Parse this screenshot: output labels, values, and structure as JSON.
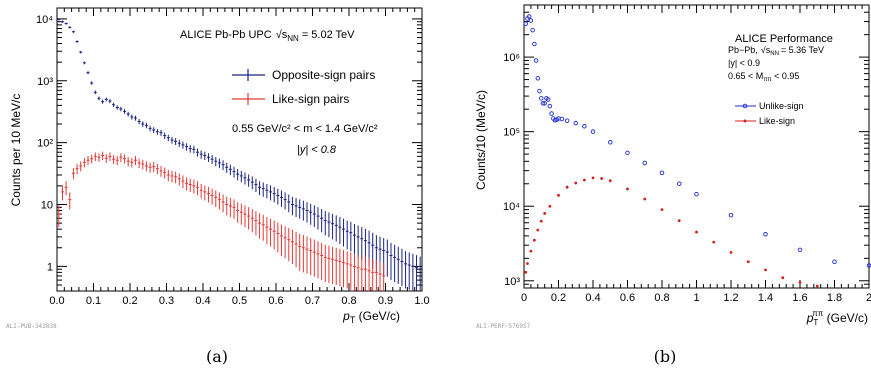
{
  "chart_data": [
    {
      "type": "scatter",
      "panel_label": "(a)",
      "watermark": "ALI-PUB-343838",
      "xlabel_prefix": "p",
      "xlabel_sub": "T",
      "xlabel_suffix": " (GeV/c)",
      "ylabel": "Counts per 10 MeV/c",
      "header": "ALICE Pb-Pb UPC",
      "header_sqrt": "√s",
      "header_sub": "NN",
      "header_energy": "= 5.02 TeV",
      "annotation_mass": "0.55 GeV/c² < m < 1.4 GeV/c²",
      "annotation_rapidity": "|y| < 0.8",
      "xlim": [
        0.0,
        1.0
      ],
      "ylim": [
        0.4,
        15000
      ],
      "yscale": "log",
      "xticks": [
        "0.0",
        "0.1",
        "0.2",
        "0.3",
        "0.4",
        "0.5",
        "0.6",
        "0.7",
        "0.8",
        "0.9",
        "1.0"
      ],
      "yticks": [
        "1",
        "10",
        "10²",
        "10³",
        "10⁴"
      ],
      "legend_position": "top-right",
      "series": [
        {
          "name": "Opposite-sign pairs",
          "color": "#1a237e",
          "x": [
            0.005,
            0.015,
            0.025,
            0.035,
            0.045,
            0.055,
            0.065,
            0.075,
            0.085,
            0.095,
            0.105,
            0.115,
            0.125,
            0.135,
            0.145,
            0.155,
            0.165,
            0.175,
            0.185,
            0.195,
            0.205,
            0.215,
            0.225,
            0.235,
            0.245,
            0.255,
            0.265,
            0.275,
            0.285,
            0.295,
            0.305,
            0.315,
            0.325,
            0.335,
            0.345,
            0.355,
            0.365,
            0.375,
            0.385,
            0.395,
            0.405,
            0.415,
            0.425,
            0.435,
            0.445,
            0.455,
            0.465,
            0.475,
            0.485,
            0.495,
            0.505,
            0.515,
            0.525,
            0.535,
            0.545,
            0.555,
            0.565,
            0.575,
            0.585,
            0.595,
            0.605,
            0.615,
            0.625,
            0.635,
            0.645,
            0.655,
            0.665,
            0.675,
            0.685,
            0.695,
            0.705,
            0.715,
            0.725,
            0.735,
            0.745,
            0.755,
            0.765,
            0.775,
            0.785,
            0.795,
            0.805,
            0.815,
            0.825,
            0.835,
            0.845,
            0.855,
            0.865,
            0.875,
            0.885,
            0.895,
            0.905,
            0.915,
            0.925,
            0.935,
            0.945,
            0.955,
            0.965,
            0.975,
            0.985,
            0.995
          ],
          "y": [
            9800,
            9000,
            8400,
            7300,
            6200,
            4300,
            2900,
            1950,
            1350,
            920,
            650,
            520,
            460,
            500,
            470,
            410,
            370,
            350,
            320,
            290,
            260,
            250,
            220,
            200,
            190,
            170,
            160,
            150,
            145,
            130,
            120,
            110,
            105,
            98,
            92,
            86,
            80,
            78,
            70,
            65,
            62,
            58,
            54,
            50,
            47,
            44,
            40,
            37,
            34,
            31,
            29,
            27,
            25,
            23,
            21,
            19,
            18,
            17,
            16,
            15,
            14,
            13,
            12,
            11,
            10,
            9.5,
            9,
            8.5,
            8,
            7.5,
            7,
            6.5,
            6,
            5.5,
            5.2,
            4.9,
            4.6,
            4.3,
            4.0,
            3.7,
            3.5,
            3.2,
            3.0,
            2.8,
            2.6,
            2.4,
            2.2,
            2.0,
            1.9,
            1.8,
            1.7,
            1.5,
            1.4,
            1.3,
            1.2,
            1.1,
            1.05,
            1.0,
            0.95,
            0.9
          ]
        },
        {
          "name": "Like-sign pairs",
          "color": "#e53935",
          "x": [
            0.005,
            0.015,
            0.025,
            0.035,
            0.045,
            0.055,
            0.065,
            0.075,
            0.085,
            0.095,
            0.105,
            0.115,
            0.125,
            0.135,
            0.145,
            0.155,
            0.165,
            0.175,
            0.185,
            0.195,
            0.205,
            0.215,
            0.225,
            0.235,
            0.245,
            0.255,
            0.265,
            0.275,
            0.285,
            0.295,
            0.305,
            0.315,
            0.325,
            0.335,
            0.345,
            0.355,
            0.365,
            0.375,
            0.385,
            0.395,
            0.405,
            0.415,
            0.425,
            0.435,
            0.445,
            0.455,
            0.465,
            0.475,
            0.485,
            0.495,
            0.505,
            0.515,
            0.525,
            0.535,
            0.545,
            0.555,
            0.565,
            0.575,
            0.585,
            0.595,
            0.605,
            0.615,
            0.625,
            0.635,
            0.645,
            0.655,
            0.665,
            0.675,
            0.685,
            0.695,
            0.705,
            0.715,
            0.725,
            0.735,
            0.745,
            0.755,
            0.765,
            0.775,
            0.785,
            0.795,
            0.805,
            0.815,
            0.825,
            0.835,
            0.845,
            0.855,
            0.865,
            0.875,
            0.885,
            0.895
          ],
          "y": [
            7,
            16,
            19,
            12,
            32,
            38,
            42,
            48,
            52,
            55,
            60,
            58,
            62,
            56,
            60,
            54,
            52,
            58,
            55,
            50,
            48,
            52,
            47,
            45,
            42,
            40,
            41,
            38,
            35,
            33,
            30,
            29,
            28,
            26,
            24,
            22,
            21,
            20,
            19,
            17,
            16,
            15,
            14,
            13,
            12,
            11,
            10,
            9.5,
            9,
            8,
            7.5,
            7,
            6.5,
            6,
            5.5,
            5,
            4.7,
            4.3,
            4,
            3.7,
            3.4,
            3.1,
            2.9,
            2.7,
            2.5,
            2.3,
            2.1,
            2.0,
            1.9,
            1.8,
            1.7,
            1.6,
            1.5,
            1.4,
            1.35,
            1.3,
            1.25,
            1.2,
            1.15,
            1.1,
            1.05,
            1.0,
            0.95,
            0.9,
            0.9,
            0.85,
            0.8,
            0.8,
            0.75,
            0.7
          ]
        }
      ]
    },
    {
      "type": "scatter",
      "panel_label": "(b)",
      "watermark": "ALI-PERF-576957",
      "xlabel_prefix": "p",
      "xlabel_sub": "T",
      "xlabel_sup": "ππ",
      "xlabel_suffix": " (GeV/c)",
      "ylabel": "Counts/10 (MeV/c)",
      "header": "ALICE Performance",
      "info_1_pre": "Pb−Pb,",
      "info_1_sqrt": "√s",
      "info_1_sub": "NN",
      "info_1_post": "= 5.36 TeV",
      "info_2": "|y| < 0.9",
      "info_3_pre": "0.65 < M",
      "info_3_sub": "ππ",
      "info_3_post": " < 0.95",
      "xlim": [
        0.0,
        2.0
      ],
      "ylim": [
        800,
        5000000
      ],
      "yscale": "log",
      "xticks": [
        "0",
        "0.2",
        "0.4",
        "0.6",
        "0.8",
        "1",
        "1.2",
        "1.4",
        "1.6",
        "1.8",
        "2"
      ],
      "yticks": [
        "10³",
        "10⁴",
        "10⁵",
        "10⁶"
      ],
      "legend_position": "top-right",
      "series": [
        {
          "name": "Unlike-sign",
          "color": "#1e2bd6",
          "x": [
            0.01,
            0.02,
            0.03,
            0.04,
            0.05,
            0.06,
            0.07,
            0.08,
            0.09,
            0.1,
            0.11,
            0.12,
            0.13,
            0.14,
            0.15,
            0.16,
            0.17,
            0.18,
            0.19,
            0.2,
            0.22,
            0.25,
            0.3,
            0.35,
            0.4,
            0.5,
            0.6,
            0.7,
            0.8,
            0.9,
            1.0,
            1.2,
            1.4,
            1.6,
            1.8,
            2.0
          ],
          "y": [
            2800000,
            3300000,
            3500000,
            3100000,
            2300000,
            1500000,
            900000,
            520000,
            350000,
            280000,
            240000,
            240000,
            280000,
            270000,
            220000,
            175000,
            150000,
            142000,
            145000,
            150000,
            148000,
            140000,
            130000,
            118000,
            100000,
            72000,
            52000,
            38000,
            28000,
            20000,
            14500,
            7600,
            4200,
            2600,
            1800,
            1600
          ]
        },
        {
          "name": "Like-sign",
          "color": "#d61e1e",
          "x": [
            0.01,
            0.02,
            0.04,
            0.06,
            0.08,
            0.1,
            0.12,
            0.15,
            0.2,
            0.25,
            0.3,
            0.35,
            0.4,
            0.45,
            0.5,
            0.6,
            0.7,
            0.8,
            0.9,
            1.0,
            1.1,
            1.2,
            1.3,
            1.4,
            1.5,
            1.6,
            1.7
          ],
          "y": [
            1300,
            1700,
            2500,
            3500,
            4800,
            6300,
            8000,
            10000,
            14000,
            18000,
            20500,
            22500,
            24000,
            23500,
            22000,
            17000,
            12500,
            9000,
            6400,
            4500,
            3300,
            2400,
            1800,
            1400,
            1100,
            950,
            850
          ]
        }
      ]
    }
  ]
}
